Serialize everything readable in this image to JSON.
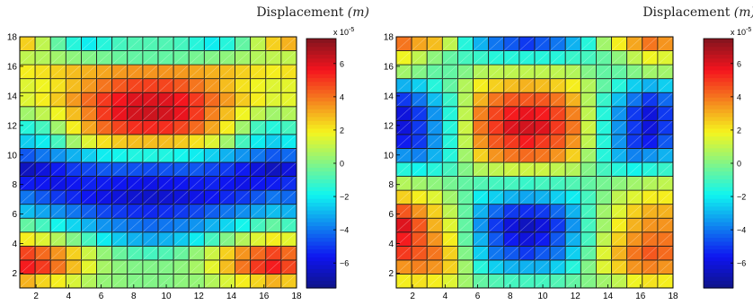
{
  "chart_data": [
    {
      "type": "heatmap",
      "title": "Displacement",
      "title_unit": "(m)",
      "xticks": [
        "2",
        "4",
        "6",
        "8",
        "10",
        "12",
        "14",
        "16",
        "18"
      ],
      "yticks": [
        "2",
        "4",
        "6",
        "8",
        "10",
        "12",
        "14",
        "16",
        "18"
      ],
      "xlim": [
        1,
        18
      ],
      "ylim": [
        1,
        18
      ],
      "colorbar": {
        "exponent_label": "x 10",
        "exponent": "-5",
        "range": [
          -7.5,
          7.5
        ],
        "ticks": [
          "-6",
          "-4",
          "-2",
          "0",
          "2",
          "4",
          "6"
        ]
      },
      "grid_rows_bottom_to_top": [
        [
          3.0,
          2.4,
          2.0,
          1.4,
          0.8,
          0.3,
          0.2,
          0.0,
          0.0,
          0.0,
          0.2,
          0.3,
          0.8,
          1.4,
          2.0,
          2.4,
          3.0,
          2.6
        ],
        [
          5.5,
          5.0,
          4.0,
          2.8,
          1.6,
          0.6,
          0.2,
          0.0,
          0.0,
          0.0,
          0.2,
          0.6,
          1.6,
          2.8,
          4.0,
          5.0,
          5.5,
          4.8
        ],
        [
          4.8,
          4.2,
          3.5,
          2.5,
          1.2,
          0.3,
          -0.4,
          -0.8,
          -1.0,
          -0.8,
          -0.4,
          0.3,
          1.2,
          2.5,
          3.5,
          4.2,
          4.8,
          4.2
        ],
        [
          2.0,
          1.5,
          0.8,
          0.0,
          -1.0,
          -2.0,
          -2.6,
          -3.0,
          -3.2,
          -3.0,
          -2.6,
          -2.0,
          -1.0,
          0.0,
          0.8,
          1.5,
          2.0,
          1.6
        ],
        [
          -0.5,
          -1.0,
          -1.8,
          -2.4,
          -3.0,
          -3.5,
          -3.8,
          -4.0,
          -4.2,
          -4.0,
          -3.8,
          -3.5,
          -3.0,
          -2.4,
          -1.8,
          -1.0,
          -0.5,
          -1.0
        ],
        [
          -2.8,
          -3.2,
          -3.6,
          -4.0,
          -4.4,
          -4.8,
          -5.0,
          -5.2,
          -5.3,
          -5.2,
          -5.0,
          -4.8,
          -4.4,
          -4.0,
          -3.6,
          -3.2,
          -2.8,
          -3.0
        ],
        [
          -4.0,
          -4.5,
          -5.0,
          -5.3,
          -5.6,
          -5.8,
          -6.0,
          -6.2,
          -6.3,
          -6.2,
          -6.0,
          -5.8,
          -5.6,
          -5.3,
          -5.0,
          -4.5,
          -4.0,
          -4.2
        ],
        [
          -5.5,
          -5.6,
          -5.8,
          -5.6,
          -5.4,
          -5.5,
          -5.6,
          -5.7,
          -5.8,
          -5.7,
          -5.6,
          -5.5,
          -5.4,
          -5.6,
          -5.8,
          -5.6,
          -5.5,
          -5.2
        ],
        [
          -6.5,
          -6.0,
          -5.5,
          -5.0,
          -4.8,
          -4.5,
          -4.5,
          -4.6,
          -4.7,
          -4.6,
          -4.5,
          -4.5,
          -4.8,
          -5.0,
          -5.5,
          -6.0,
          -6.5,
          -6.0
        ],
        [
          -4.5,
          -4.0,
          -3.5,
          -3.0,
          -2.5,
          -2.0,
          -1.8,
          -1.6,
          -1.6,
          -1.6,
          -1.8,
          -2.0,
          -2.5,
          -3.0,
          -3.5,
          -4.0,
          -4.5,
          -4.2
        ],
        [
          -2.5,
          -2.0,
          -1.0,
          0.5,
          1.5,
          2.2,
          2.6,
          2.8,
          2.8,
          2.8,
          2.6,
          2.2,
          1.5,
          0.5,
          -1.0,
          -2.0,
          -2.5,
          -2.0
        ],
        [
          -1.5,
          -1.0,
          0.5,
          2.0,
          3.2,
          4.2,
          4.8,
          5.2,
          5.3,
          5.2,
          4.8,
          4.2,
          3.2,
          2.0,
          0.5,
          -1.0,
          -1.5,
          -1.0
        ],
        [
          0.5,
          1.0,
          1.8,
          2.8,
          3.8,
          5.0,
          5.8,
          6.2,
          6.3,
          6.2,
          5.8,
          5.0,
          3.8,
          2.8,
          1.8,
          1.0,
          0.5,
          0.8
        ],
        [
          1.5,
          2.0,
          2.6,
          3.4,
          4.2,
          5.0,
          5.6,
          6.0,
          6.0,
          6.0,
          5.6,
          5.0,
          4.2,
          3.4,
          2.6,
          2.0,
          1.5,
          1.6
        ],
        [
          1.5,
          1.8,
          2.2,
          2.8,
          3.4,
          4.0,
          4.5,
          4.8,
          4.9,
          4.8,
          4.5,
          4.0,
          3.4,
          2.8,
          2.2,
          1.8,
          1.5,
          1.6
        ],
        [
          2.0,
          2.2,
          2.5,
          2.8,
          3.0,
          3.2,
          3.4,
          3.5,
          3.5,
          3.5,
          3.4,
          3.2,
          3.0,
          2.8,
          2.5,
          2.2,
          2.0,
          2.2
        ],
        [
          1.0,
          0.8,
          0.5,
          0.2,
          0.0,
          -0.2,
          -0.4,
          -0.5,
          -0.5,
          -0.5,
          -0.4,
          -0.2,
          0.0,
          0.2,
          0.5,
          0.8,
          1.0,
          1.0
        ],
        [
          2.5,
          1.0,
          -0.5,
          -1.5,
          -2.0,
          -1.5,
          -1.0,
          -0.8,
          -0.8,
          -0.8,
          -1.0,
          -1.5,
          -2.0,
          -1.5,
          -0.5,
          1.0,
          2.5,
          3.0
        ]
      ]
    },
    {
      "type": "heatmap",
      "title": "Displacement",
      "title_unit": "(m)",
      "xticks": [
        "2",
        "4",
        "6",
        "8",
        "10",
        "12",
        "14",
        "16",
        "18"
      ],
      "yticks": [
        "2",
        "4",
        "6",
        "8",
        "10",
        "12",
        "14",
        "16",
        "18"
      ],
      "xlim": [
        1,
        18
      ],
      "ylim": [
        1,
        18
      ],
      "colorbar": {
        "exponent_label": "x 10",
        "exponent": "-5",
        "range": [
          -7.5,
          7.5
        ],
        "ticks": [
          "-6",
          "-4",
          "-2",
          "0",
          "2",
          "4",
          "6"
        ]
      },
      "grid_rows_bottom_to_top": [
        [
          2.0,
          2.2,
          2.0,
          1.5,
          0.5,
          -0.5,
          -0.8,
          -1.0,
          -1.0,
          -1.0,
          -0.8,
          -0.5,
          0.0,
          0.5,
          1.0,
          1.8,
          2.2,
          2.0
        ],
        [
          3.5,
          3.8,
          3.5,
          2.5,
          0.5,
          -1.5,
          -2.5,
          -3.0,
          -3.0,
          -3.0,
          -2.5,
          -1.5,
          0.0,
          1.5,
          2.5,
          3.5,
          3.8,
          3.5
        ],
        [
          5.0,
          4.5,
          4.0,
          2.5,
          0.0,
          -2.5,
          -4.0,
          -4.5,
          -5.0,
          -4.5,
          -4.0,
          -2.5,
          -0.5,
          1.5,
          3.0,
          4.0,
          4.5,
          4.2
        ],
        [
          5.5,
          4.5,
          3.5,
          2.0,
          -0.5,
          -3.0,
          -4.5,
          -5.5,
          -6.0,
          -5.5,
          -4.5,
          -3.0,
          -1.0,
          1.0,
          2.5,
          3.5,
          4.0,
          4.0
        ],
        [
          6.0,
          4.5,
          3.0,
          1.5,
          -0.5,
          -3.5,
          -5.0,
          -6.0,
          -6.5,
          -6.0,
          -5.0,
          -3.5,
          -1.0,
          0.5,
          2.0,
          3.0,
          3.5,
          3.5
        ],
        [
          4.5,
          3.5,
          2.5,
          1.0,
          -0.5,
          -3.0,
          -4.2,
          -5.0,
          -5.2,
          -5.0,
          -4.2,
          -3.0,
          -1.0,
          0.5,
          1.5,
          2.5,
          3.0,
          3.0
        ],
        [
          2.5,
          2.0,
          1.5,
          0.5,
          -0.5,
          -2.0,
          -2.5,
          -3.0,
          -3.2,
          -3.0,
          -2.5,
          -2.0,
          -1.0,
          0.0,
          1.0,
          1.5,
          2.0,
          2.0
        ],
        [
          0.8,
          0.5,
          0.2,
          -0.2,
          -0.5,
          -0.8,
          -1.0,
          -1.0,
          -1.2,
          -1.0,
          -1.0,
          -0.8,
          -0.5,
          -0.2,
          0.2,
          0.5,
          0.8,
          1.0
        ],
        [
          -1.5,
          -1.8,
          -1.5,
          -1.0,
          0.0,
          0.8,
          1.0,
          1.2,
          1.2,
          1.2,
          1.0,
          0.8,
          0.0,
          -1.0,
          -1.5,
          -1.8,
          -1.5,
          -1.2
        ],
        [
          -3.5,
          -3.8,
          -3.0,
          -1.5,
          0.5,
          2.5,
          3.5,
          4.0,
          4.2,
          4.0,
          3.5,
          2.5,
          0.5,
          -1.5,
          -3.0,
          -3.8,
          -3.5,
          -3.0
        ],
        [
          -5.5,
          -5.0,
          -3.5,
          -1.5,
          1.0,
          3.5,
          4.5,
          5.0,
          5.5,
          5.0,
          4.5,
          3.5,
          1.0,
          -1.5,
          -3.5,
          -5.0,
          -5.5,
          -4.5
        ],
        [
          -6.0,
          -5.0,
          -3.5,
          -1.5,
          1.2,
          4.0,
          5.0,
          6.0,
          6.2,
          6.0,
          5.0,
          4.0,
          1.2,
          -1.5,
          -3.5,
          -5.0,
          -6.0,
          -5.0
        ],
        [
          -6.0,
          -5.0,
          -3.5,
          -1.5,
          1.0,
          3.8,
          4.8,
          5.5,
          5.8,
          5.5,
          4.8,
          3.8,
          1.0,
          -1.5,
          -3.5,
          -5.0,
          -6.0,
          -5.0
        ],
        [
          -5.0,
          -4.0,
          -2.8,
          -1.2,
          0.8,
          3.0,
          4.0,
          4.5,
          4.5,
          4.5,
          4.0,
          3.0,
          0.8,
          -1.2,
          -2.8,
          -4.0,
          -5.0,
          -4.2
        ],
        [
          -3.0,
          -2.5,
          -1.5,
          -0.5,
          0.8,
          2.0,
          2.5,
          2.8,
          3.0,
          2.8,
          2.5,
          2.0,
          0.8,
          -0.5,
          -1.5,
          -2.5,
          -3.0,
          -2.5
        ],
        [
          0.5,
          0.0,
          -0.5,
          -0.5,
          0.0,
          0.8,
          1.0,
          1.0,
          1.0,
          1.0,
          1.0,
          0.8,
          0.0,
          -0.5,
          -0.5,
          0.0,
          0.5,
          0.5
        ],
        [
          1.8,
          1.0,
          0.2,
          -0.5,
          -1.0,
          -1.2,
          -1.5,
          -1.5,
          -1.5,
          -1.5,
          -1.5,
          -1.2,
          -1.0,
          -0.5,
          0.2,
          1.0,
          1.8,
          1.5
        ],
        [
          4.0,
          3.2,
          2.8,
          1.0,
          -1.5,
          -3.0,
          -4.0,
          -4.5,
          -5.0,
          -4.5,
          -4.0,
          -3.0,
          -1.5,
          0.5,
          2.0,
          3.2,
          4.0,
          3.5
        ]
      ]
    }
  ]
}
